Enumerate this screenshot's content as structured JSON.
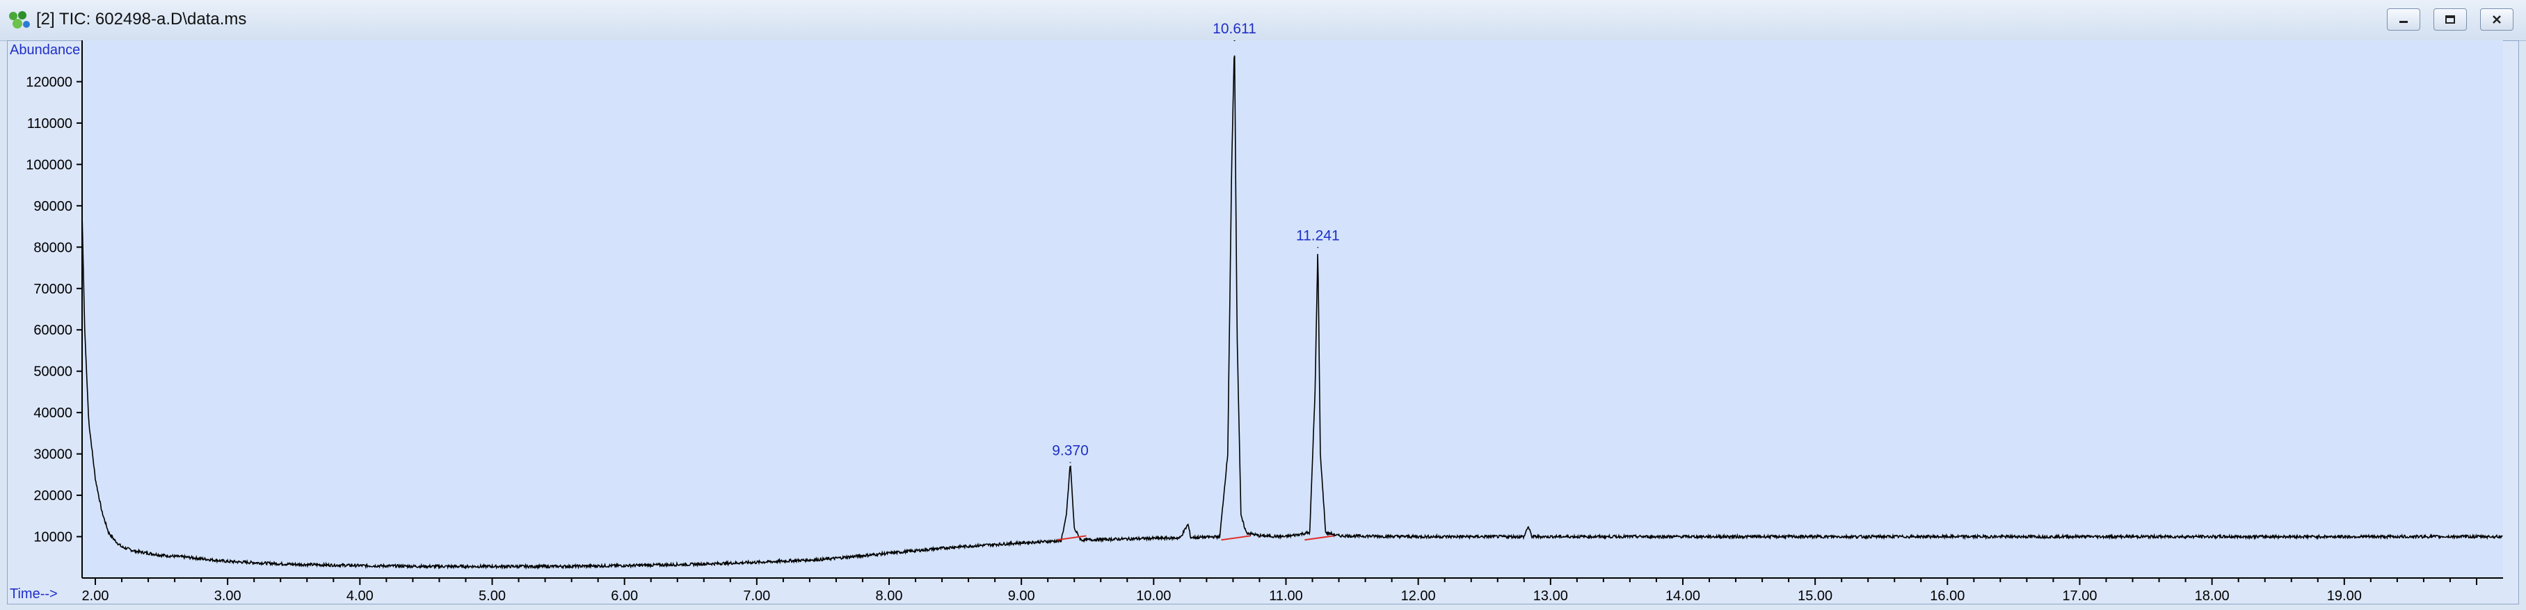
{
  "window": {
    "title": "[2] TIC: 602498-a.D\\data.ms",
    "icon": "chromatogram-app-icon",
    "controls": [
      "minimize-icon",
      "restore-icon",
      "close-icon"
    ]
  },
  "colors": {
    "plot_background": "#d4e3fb",
    "trace": "#000000",
    "peak_label": "#1f2fc8",
    "baseline_marker": "#e0302a",
    "axis_label": "#1f2fc8"
  },
  "chart_data": {
    "type": "line",
    "ylabel": "Abundance",
    "xlabel": "Time-->",
    "xlim": [
      1.9,
      20.2
    ],
    "ylim": [
      0,
      130000
    ],
    "x_ticks": [
      "2.00",
      "3.00",
      "4.00",
      "5.00",
      "6.00",
      "7.00",
      "8.00",
      "9.00",
      "10.00",
      "11.00",
      "12.00",
      "13.00",
      "14.00",
      "15.00",
      "16.00",
      "17.00",
      "18.00",
      "19.00"
    ],
    "y_ticks": [
      "10000",
      "20000",
      "30000",
      "40000",
      "50000",
      "60000",
      "70000",
      "80000",
      "90000",
      "100000",
      "110000",
      "120000"
    ],
    "peaks": [
      {
        "label": "9.370",
        "x": 9.37,
        "y": 28000
      },
      {
        "label": "10.611",
        "x": 10.611,
        "y": 130000
      },
      {
        "label": "11.241",
        "x": 11.241,
        "y": 80000
      }
    ],
    "series": [
      {
        "x": [
          1.9,
          1.92,
          1.95,
          2.0,
          2.05,
          2.1,
          2.15,
          2.2,
          2.3,
          2.5,
          2.7,
          3.0,
          3.5,
          4.0,
          4.5,
          5.0,
          5.5,
          6.0,
          6.5,
          7.0,
          7.5,
          8.0,
          8.5,
          9.0,
          9.3,
          9.34,
          9.37,
          9.4,
          9.45,
          10.0,
          10.2,
          10.26,
          10.28,
          10.32,
          10.5,
          10.56,
          10.59,
          10.611,
          10.63,
          10.66,
          10.7,
          10.8,
          11.0,
          11.18,
          11.22,
          11.241,
          11.26,
          11.3,
          11.4,
          12.0,
          12.5,
          12.8,
          12.83,
          12.86,
          13.0,
          14.0,
          15.0,
          16.0,
          17.0,
          18.0,
          19.0,
          20.0,
          20.2
        ],
        "y": [
          88000,
          60000,
          38000,
          24000,
          16000,
          11000,
          9000,
          7500,
          6500,
          5500,
          5000,
          4000,
          3300,
          3000,
          2800,
          2800,
          2800,
          3000,
          3300,
          3800,
          4500,
          6000,
          7500,
          8500,
          9000,
          15000,
          28000,
          12000,
          9200,
          9600,
          9700,
          13000,
          9800,
          9800,
          10000,
          30000,
          100000,
          130000,
          60000,
          15000,
          11000,
          10200,
          10000,
          11000,
          45000,
          80000,
          30000,
          11000,
          10200,
          10000,
          10000,
          10000,
          12500,
          10000,
          10000,
          10000,
          10000,
          10000,
          10000,
          10000,
          10000,
          10000,
          10000
        ]
      }
    ],
    "grid": false
  }
}
